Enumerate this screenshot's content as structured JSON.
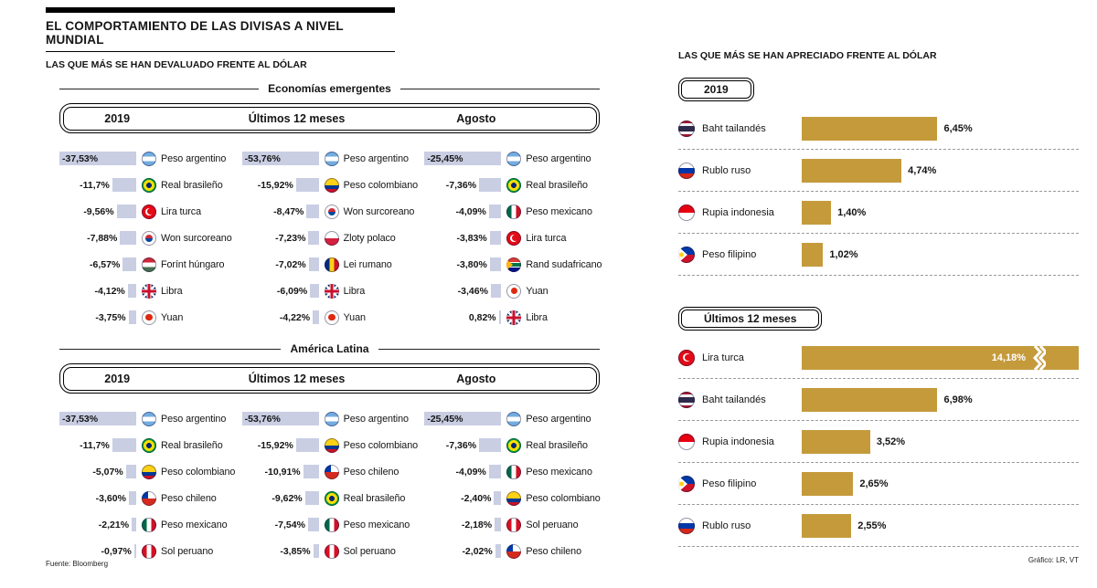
{
  "page": {
    "title": "EL COMPORTAMIENTO DE LAS DIVISAS A NIVEL MUNDIAL",
    "footer": {
      "source": "Fuente: Bloomberg",
      "credit": "Gráfico: LR, VT"
    }
  },
  "left_panel": {
    "subtitle": "LAS QUE MÁS SE HAN DEVALUADO FRENTE AL DÓLAR"
  },
  "right_panel": {
    "subtitle": "LAS QUE MÁS SE HAN APRECIADO FRENTE AL DÓLAR"
  },
  "colors": {
    "devalued_bar": "#c9cee3",
    "appreciated_bar": "#c49a3b"
  },
  "chart_data": [
    {
      "type": "bar",
      "orientation": "horizontal",
      "title": "Economías emergentes",
      "unit": "%",
      "legend_position": "none",
      "columns": [
        {
          "label": "2019",
          "rows": [
            {
              "value": -37.53,
              "display": "-37,53%",
              "currency": "Peso argentino",
              "flag": "argentina"
            },
            {
              "value": -11.7,
              "display": "-11,7%",
              "currency": "Real brasileño",
              "flag": "brazil"
            },
            {
              "value": -9.56,
              "display": "-9,56%",
              "currency": "Lira turca",
              "flag": "turkey"
            },
            {
              "value": -7.88,
              "display": "-7,88%",
              "currency": "Won surcoreano",
              "flag": "southkorea"
            },
            {
              "value": -6.57,
              "display": "-6,57%",
              "currency": "Forínt húngaro",
              "flag": "hungary"
            },
            {
              "value": -4.12,
              "display": "-4,12%",
              "currency": "Libra",
              "flag": "uk"
            },
            {
              "value": -3.75,
              "display": "-3,75%",
              "currency": "Yuan",
              "flag": "china"
            }
          ]
        },
        {
          "label": "Últimos 12 meses",
          "rows": [
            {
              "value": -53.76,
              "display": "-53,76%",
              "currency": "Peso argentino",
              "flag": "argentina"
            },
            {
              "value": -15.92,
              "display": "-15,92%",
              "currency": "Peso colombiano",
              "flag": "colombia"
            },
            {
              "value": -8.47,
              "display": "-8,47%",
              "currency": "Won surcoreano",
              "flag": "southkorea"
            },
            {
              "value": -7.23,
              "display": "-7,23%",
              "currency": "Zloty polaco",
              "flag": "poland"
            },
            {
              "value": -7.02,
              "display": "-7,02%",
              "currency": "Lei rumano",
              "flag": "romania"
            },
            {
              "value": -6.09,
              "display": "-6,09%",
              "currency": "Libra",
              "flag": "uk"
            },
            {
              "value": -4.22,
              "display": "-4,22%",
              "currency": "Yuan",
              "flag": "china"
            }
          ]
        },
        {
          "label": "Agosto",
          "rows": [
            {
              "value": -25.45,
              "display": "-25,45%",
              "currency": "Peso argentino",
              "flag": "argentina"
            },
            {
              "value": -7.36,
              "display": "-7,36%",
              "currency": "Real brasileño",
              "flag": "brazil"
            },
            {
              "value": -4.09,
              "display": "-4,09%",
              "currency": "Peso mexicano",
              "flag": "mexico"
            },
            {
              "value": -3.83,
              "display": "-3,83%",
              "currency": "Lira turca",
              "flag": "turkey"
            },
            {
              "value": -3.8,
              "display": "-3,80%",
              "currency": "Rand sudafricano",
              "flag": "southafrica"
            },
            {
              "value": -3.46,
              "display": "-3,46%",
              "currency": "Yuan",
              "flag": "china"
            },
            {
              "value": 0.82,
              "display": "0,82%",
              "currency": "Libra",
              "flag": "uk"
            }
          ]
        }
      ]
    },
    {
      "type": "bar",
      "orientation": "horizontal",
      "title": "América Latina",
      "unit": "%",
      "legend_position": "none",
      "columns": [
        {
          "label": "2019",
          "rows": [
            {
              "value": -37.53,
              "display": "-37,53%",
              "currency": "Peso argentino",
              "flag": "argentina"
            },
            {
              "value": -11.7,
              "display": "-11,7%",
              "currency": "Real brasileño",
              "flag": "brazil"
            },
            {
              "value": -5.07,
              "display": "-5,07%",
              "currency": "Peso colombiano",
              "flag": "colombia"
            },
            {
              "value": -3.6,
              "display": "-3,60%",
              "currency": "Peso chileno",
              "flag": "chile"
            },
            {
              "value": -2.21,
              "display": "-2,21%",
              "currency": "Peso mexicano",
              "flag": "mexico"
            },
            {
              "value": -0.97,
              "display": "-0,97%",
              "currency": "Sol peruano",
              "flag": "peru"
            }
          ]
        },
        {
          "label": "Últimos 12 meses",
          "rows": [
            {
              "value": -53.76,
              "display": "-53,76%",
              "currency": "Peso argentino",
              "flag": "argentina"
            },
            {
              "value": -15.92,
              "display": "-15,92%",
              "currency": "Peso colombiano",
              "flag": "colombia"
            },
            {
              "value": -10.91,
              "display": "-10,91%",
              "currency": "Peso chileno",
              "flag": "chile"
            },
            {
              "value": -9.62,
              "display": "-9,62%",
              "currency": "Real brasileño",
              "flag": "brazil"
            },
            {
              "value": -7.54,
              "display": "-7,54%",
              "currency": "Peso mexicano",
              "flag": "mexico"
            },
            {
              "value": -3.85,
              "display": "-3,85%",
              "currency": "Sol peruano",
              "flag": "peru"
            }
          ]
        },
        {
          "label": "Agosto",
          "rows": [
            {
              "value": -25.45,
              "display": "-25,45%",
              "currency": "Peso argentino",
              "flag": "argentina"
            },
            {
              "value": -7.36,
              "display": "-7,36%",
              "currency": "Real brasileño",
              "flag": "brazil"
            },
            {
              "value": -4.09,
              "display": "-4,09%",
              "currency": "Peso mexicano",
              "flag": "mexico"
            },
            {
              "value": -2.4,
              "display": "-2,40%",
              "currency": "Peso colombiano",
              "flag": "colombia"
            },
            {
              "value": -2.18,
              "display": "-2,18%",
              "currency": "Sol peruano",
              "flag": "peru"
            },
            {
              "value": -2.02,
              "display": "-2,02%",
              "currency": "Peso chileno",
              "flag": "chile"
            }
          ]
        }
      ]
    },
    {
      "type": "bar",
      "orientation": "horizontal",
      "title": "2019",
      "unit": "%",
      "legend_position": "none",
      "rows": [
        {
          "value": 6.45,
          "display": "6,45%",
          "currency": "Baht tailandés",
          "flag": "thailand"
        },
        {
          "value": 4.74,
          "display": "4,74%",
          "currency": "Rublo ruso",
          "flag": "russia"
        },
        {
          "value": 1.4,
          "display": "1,40%",
          "currency": "Rupia indonesia",
          "flag": "indonesia"
        },
        {
          "value": 1.02,
          "display": "1,02%",
          "currency": "Peso filipino",
          "flag": "philippines"
        }
      ]
    },
    {
      "type": "bar",
      "orientation": "horizontal",
      "title": "Últimos 12 meses",
      "unit": "%",
      "legend_position": "none",
      "rows": [
        {
          "value": 14.18,
          "display": "14,18%",
          "currency": "Lira turca",
          "flag": "turkey",
          "overflow": true
        },
        {
          "value": 6.98,
          "display": "6,98%",
          "currency": "Baht tailandés",
          "flag": "thailand"
        },
        {
          "value": 3.52,
          "display": "3,52%",
          "currency": "Rupia indonesia",
          "flag": "indonesia"
        },
        {
          "value": 2.65,
          "display": "2,65%",
          "currency": "Peso filipino",
          "flag": "philippines"
        },
        {
          "value": 2.55,
          "display": "2,55%",
          "currency": "Rublo ruso",
          "flag": "russia"
        }
      ]
    }
  ]
}
